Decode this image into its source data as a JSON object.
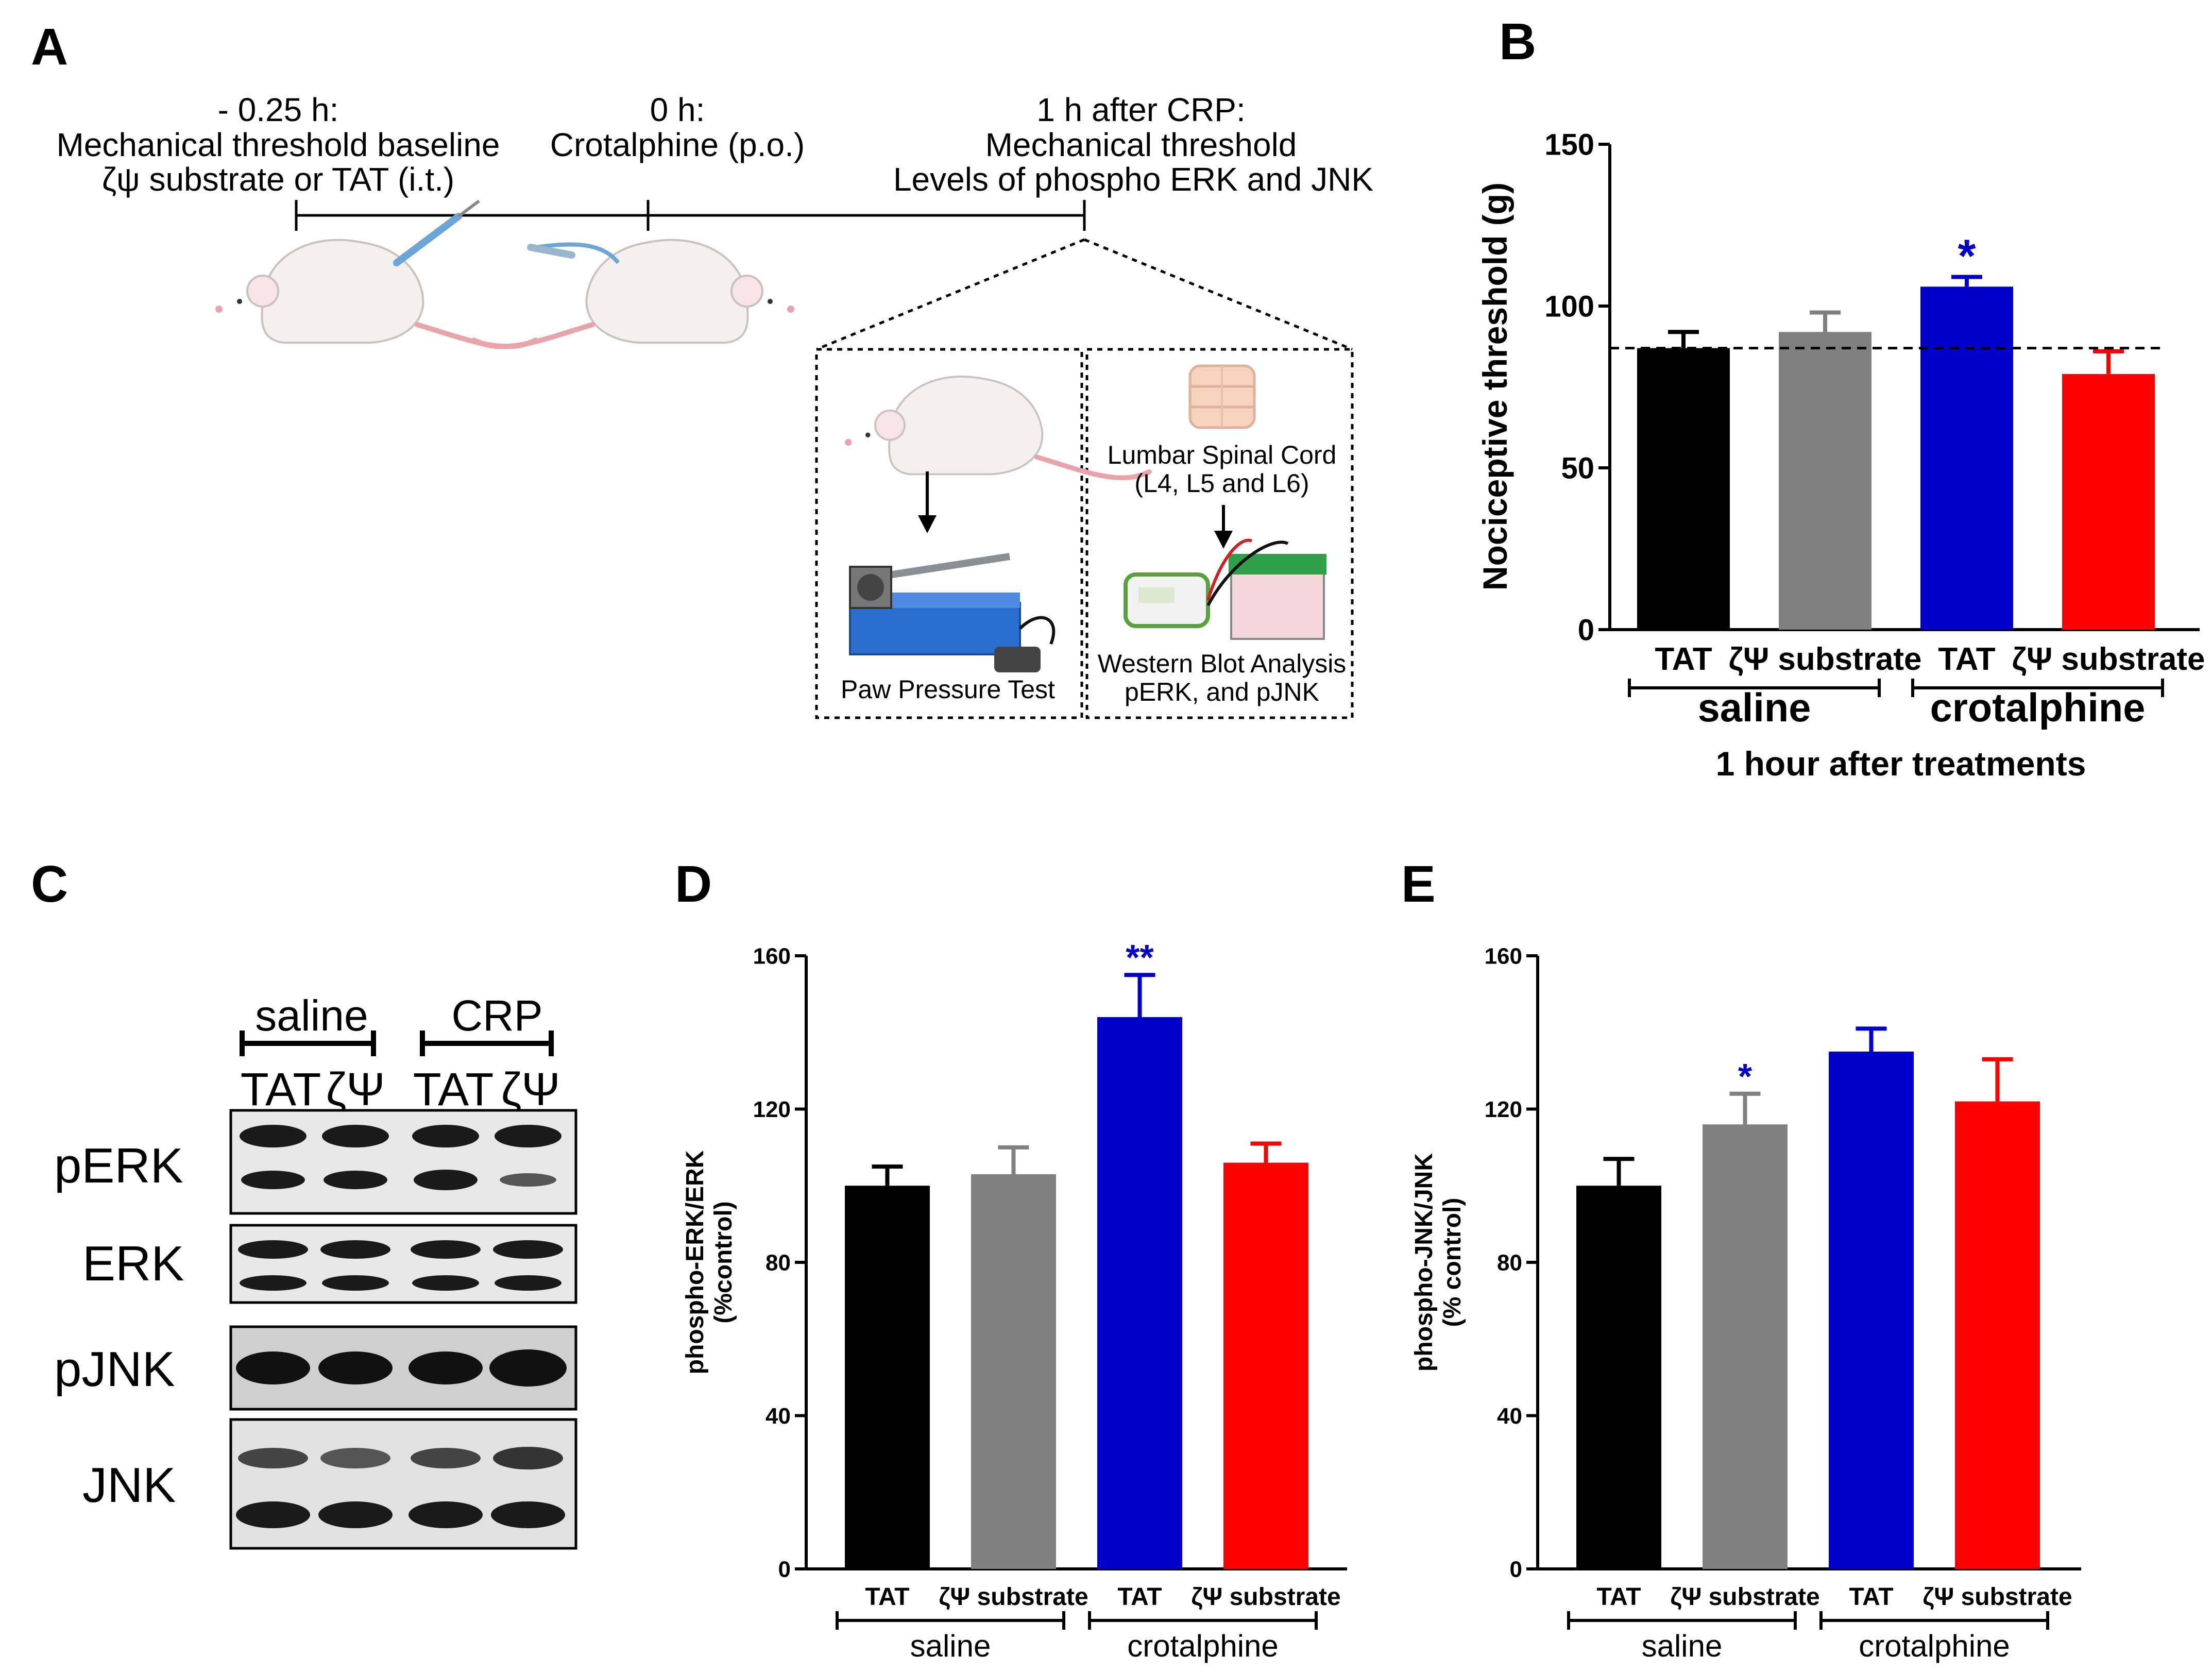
{
  "panels": {
    "A": {
      "letter": "A",
      "timeline": [
        {
          "lines": [
            "- 0.25 h:",
            "Mechanical threshold baseline",
            "ζψ substrate or TAT (i.t.)"
          ]
        },
        {
          "lines": [
            "0 h:",
            "Crotalphine (p.o.)"
          ]
        },
        {
          "lines": [
            "1 h after CRP:",
            "Mechanical threshold",
            "Levels of phospho ERK and JNK"
          ]
        }
      ],
      "box1_label": "Paw Pressure Test",
      "box2_top": [
        "Lumbar Spinal Cord",
        "(L4, L5 and L6)"
      ],
      "box2_bottom": [
        "Western Blot Analysis",
        "pERK, and pJNK"
      ]
    },
    "B": {
      "letter": "B"
    },
    "C": {
      "letter": "C",
      "groups": [
        "saline",
        "CRP"
      ],
      "lanes": [
        "TAT",
        "ζΨ",
        "TAT",
        "ζΨ"
      ],
      "blots": [
        "pERK",
        "ERK",
        "pJNK",
        "JNK"
      ]
    },
    "D": {
      "letter": "D"
    },
    "E": {
      "letter": "E"
    }
  },
  "colors": {
    "tat_saline": "#000000",
    "zeta_saline": "#808080",
    "tat_crp": "#0000c8",
    "zeta_crp": "#ff0000",
    "star": "#0000c8"
  },
  "chart_data": [
    {
      "panel": "B",
      "type": "bar",
      "categories": [
        "TAT",
        "ζΨ substrate",
        "TAT",
        "ζΨ substrate"
      ],
      "values": [
        87,
        92,
        106,
        79
      ],
      "errors": [
        5,
        6,
        3,
        7
      ],
      "groups": [
        "saline",
        "crotalphine"
      ],
      "ylabel": "Nociceptive threshold (g)",
      "xlabel": "1 hour after treatments",
      "ylim": [
        0,
        150
      ],
      "yticks": [
        "0",
        "50",
        "100",
        "150"
      ],
      "baseline": 87,
      "annotations": [
        "",
        "",
        "*",
        ""
      ]
    },
    {
      "panel": "D",
      "type": "bar",
      "categories": [
        "TAT",
        "ζΨ substrate",
        "TAT",
        "ζΨ substrate"
      ],
      "values": [
        100,
        103,
        144,
        106
      ],
      "errors": [
        5,
        7,
        11,
        5
      ],
      "groups": [
        "saline",
        "crotalphine"
      ],
      "ylabel": [
        "phospho-ERK/ERK",
        "(%control)"
      ],
      "ylim": [
        0,
        160
      ],
      "yticks": [
        "0",
        "40",
        "80",
        "120",
        "160"
      ],
      "annotations": [
        "",
        "",
        "**",
        ""
      ]
    },
    {
      "panel": "E",
      "type": "bar",
      "categories": [
        "TAT",
        "ζΨ substrate",
        "TAT",
        "ζΨ substrate"
      ],
      "values": [
        100,
        116,
        135,
        122
      ],
      "errors": [
        7,
        8,
        6,
        11
      ],
      "groups": [
        "saline",
        "crotalphine"
      ],
      "ylabel": [
        "phospho-JNK/JNK",
        "(% control)"
      ],
      "ylim": [
        0,
        160
      ],
      "yticks": [
        "0",
        "40",
        "80",
        "120",
        "160"
      ],
      "annotations": [
        "",
        "*",
        "",
        ""
      ]
    }
  ]
}
